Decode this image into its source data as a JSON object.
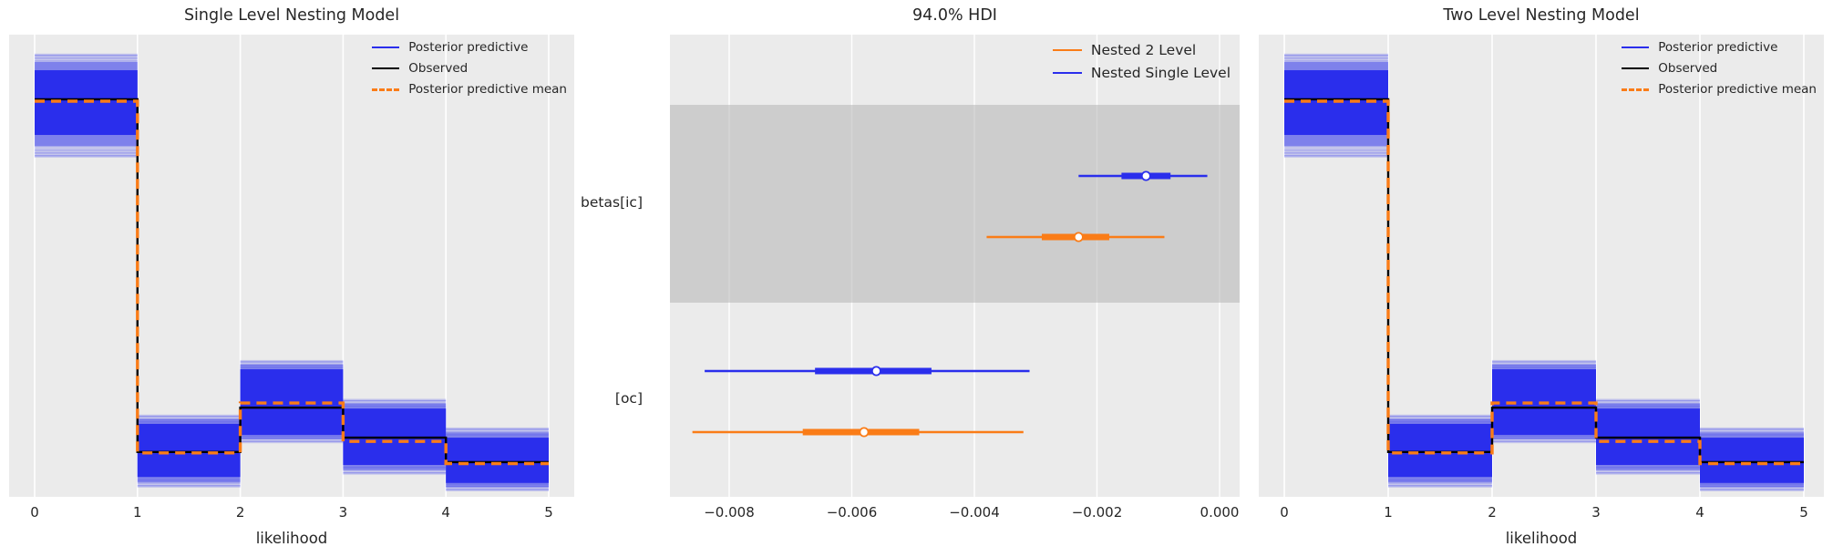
{
  "figure": {
    "bg": "#ffffff",
    "panel_bg": "#ebebeb",
    "grid_color": "#ffffff",
    "text_color": "#262626",
    "shaded_band_color": "#b4b4b4",
    "blue": "#2a2eec",
    "orange": "#fa7c17",
    "black": "#000000"
  },
  "chart_data": [
    {
      "id": "single-level-ppc",
      "type": "line",
      "style": "posterior predictive check, step plot (many overlaid posterior draws as blue band)",
      "title": "Single Level Nesting Model",
      "xlabel": "likelihood",
      "x_ticks": [
        "0",
        "1",
        "2",
        "3",
        "4",
        "5"
      ],
      "x_tick_values": [
        0,
        1,
        2,
        3,
        4,
        5
      ],
      "xlim": [
        -0.25,
        5.25
      ],
      "y_axis_note": "no y ticks; heights are relative (fraction of panel height)",
      "grid": true,
      "legend_position": "upper right",
      "legend": [
        {
          "label": "Posterior predictive",
          "color": "#2a2eec",
          "line": "solid"
        },
        {
          "label": "Observed",
          "color": "#000000",
          "line": "solid"
        },
        {
          "label": "Posterior predictive mean",
          "color": "#fa7c17",
          "line": "dashed"
        }
      ],
      "bins": [
        "0-1",
        "1-2",
        "2-3",
        "3-4",
        "4-5"
      ],
      "observed": [
        0.86,
        0.097,
        0.193,
        0.128,
        0.075
      ],
      "posterior_predictive_mean": [
        0.856,
        0.095,
        0.203,
        0.12,
        0.072
      ],
      "band_core_low": [
        0.783,
        0.043,
        0.134,
        0.069,
        0.03
      ],
      "band_core_high": [
        0.923,
        0.158,
        0.276,
        0.191,
        0.128
      ],
      "band_faint_low": [
        0.734,
        0.02,
        0.116,
        0.048,
        0.012
      ],
      "band_faint_high": [
        0.959,
        0.178,
        0.296,
        0.212,
        0.15
      ]
    },
    {
      "id": "hdi-forest",
      "type": "scatter",
      "style": "forest plot: median dot, thick quartile bar, thin 94% HDI line",
      "title": "94.0% HDI",
      "xlabel": "",
      "x_ticks": [
        "−0.008",
        "−0.006",
        "−0.004",
        "−0.002",
        "0.000"
      ],
      "x_tick_values": [
        -0.008,
        -0.006,
        -0.004,
        -0.002,
        0.0
      ],
      "xlim": [
        -0.0094,
        0.0003
      ],
      "grid": true,
      "legend_position": "upper right",
      "rows": [
        {
          "label": "betas[ic]",
          "shaded": true
        },
        {
          "label": "[oc]",
          "shaded": false
        }
      ],
      "legend": [
        {
          "label": "Nested 2 Level",
          "color": "#fa7c17"
        },
        {
          "label": "Nested Single Level",
          "color": "#2a2eec"
        }
      ],
      "series": [
        {
          "name": "Nested Single Level",
          "color": "#2a2eec",
          "points": [
            {
              "row": "betas[ic]",
              "median": -0.0012,
              "hdi_94": [
                -0.0023,
                -0.0002
              ],
              "quartile": [
                -0.0016,
                -0.0008
              ]
            },
            {
              "row": "[oc]",
              "median": -0.0056,
              "hdi_94": [
                -0.0084,
                -0.0031
              ],
              "quartile": [
                -0.0066,
                -0.0047
              ]
            }
          ]
        },
        {
          "name": "Nested 2 Level",
          "color": "#fa7c17",
          "points": [
            {
              "row": "betas[ic]",
              "median": -0.0023,
              "hdi_94": [
                -0.0038,
                -0.0009
              ],
              "quartile": [
                -0.0029,
                -0.0018
              ]
            },
            {
              "row": "[oc]",
              "median": -0.0058,
              "hdi_94": [
                -0.0086,
                -0.0032
              ],
              "quartile": [
                -0.0068,
                -0.0049
              ]
            }
          ]
        }
      ]
    },
    {
      "id": "two-level-ppc",
      "type": "line",
      "style": "posterior predictive check, step plot (many overlaid posterior draws as blue band)",
      "title": "Two Level Nesting Model",
      "xlabel": "likelihood",
      "x_ticks": [
        "0",
        "1",
        "2",
        "3",
        "4",
        "5"
      ],
      "x_tick_values": [
        0,
        1,
        2,
        3,
        4,
        5
      ],
      "xlim": [
        -0.25,
        5.25
      ],
      "y_axis_note": "no y ticks; heights are relative (fraction of panel height)",
      "grid": true,
      "legend_position": "upper right",
      "legend": [
        {
          "label": "Posterior predictive",
          "color": "#2a2eec",
          "line": "solid"
        },
        {
          "label": "Observed",
          "color": "#000000",
          "line": "solid"
        },
        {
          "label": "Posterior predictive mean",
          "color": "#fa7c17",
          "line": "dashed"
        }
      ],
      "bins": [
        "0-1",
        "1-2",
        "2-3",
        "3-4",
        "4-5"
      ],
      "observed": [
        0.86,
        0.097,
        0.193,
        0.128,
        0.075
      ],
      "posterior_predictive_mean": [
        0.856,
        0.095,
        0.203,
        0.12,
        0.072
      ],
      "band_core_low": [
        0.783,
        0.043,
        0.134,
        0.069,
        0.03
      ],
      "band_core_high": [
        0.923,
        0.158,
        0.276,
        0.191,
        0.128
      ],
      "band_faint_low": [
        0.734,
        0.02,
        0.116,
        0.048,
        0.012
      ],
      "band_faint_high": [
        0.959,
        0.178,
        0.296,
        0.212,
        0.15
      ]
    }
  ]
}
